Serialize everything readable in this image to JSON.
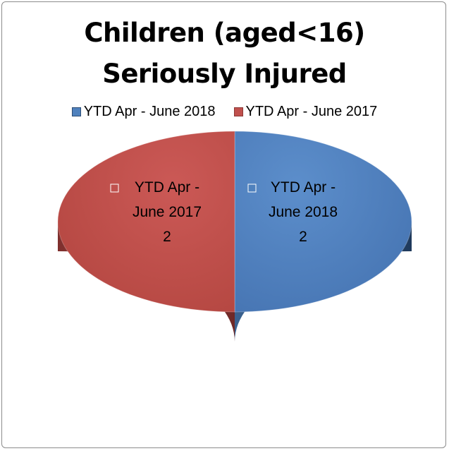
{
  "chart_data": {
    "type": "pie",
    "title_lines": [
      "Children (aged<16)",
      "Seriously Injured"
    ],
    "series": [
      {
        "name": "",
        "values": [
          {
            "label": "YTD Apr - June 2018",
            "value": 2,
            "color": "#4F81BD",
            "side_color": "#2C4D75"
          },
          {
            "label": "YTD Apr - June 2017",
            "value": 2,
            "color": "#C0504D",
            "side_color": "#8C3836"
          }
        ]
      }
    ],
    "data_labels": [
      {
        "lines": [
          "YTD Apr -",
          "June 2018",
          "2"
        ]
      },
      {
        "lines": [
          "YTD Apr -",
          "June 2017",
          "2"
        ]
      }
    ],
    "legend": {
      "placement": "top",
      "entries": [
        "YTD Apr - June 2018",
        "YTD Apr - June 2017"
      ]
    },
    "style": "3d"
  }
}
